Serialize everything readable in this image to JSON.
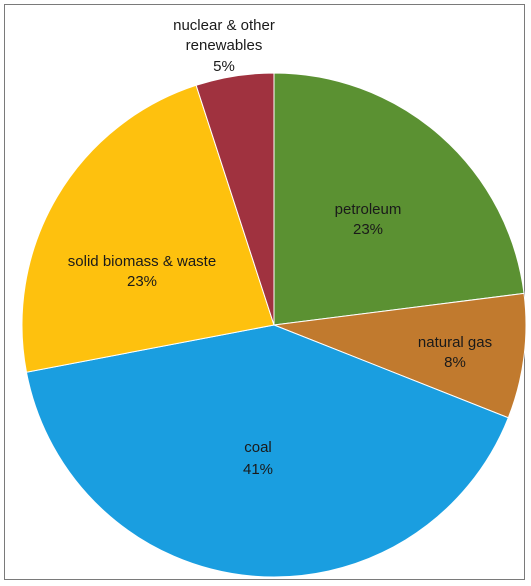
{
  "chart_data": {
    "type": "pie",
    "title": "",
    "start_angle_deg": 0,
    "direction": "clockwise",
    "slices": [
      {
        "label": "petroleum",
        "value": 23,
        "value_label": "23%",
        "color": "#5b9132"
      },
      {
        "label": "natural gas",
        "value": 8,
        "value_label": "8%",
        "color": "#c17a2e"
      },
      {
        "label": "coal",
        "value": 41,
        "value_label": "41%",
        "color": "#1a9ee0"
      },
      {
        "label": "solid biomass & waste",
        "value": 23,
        "value_label": "23%",
        "color": "#fec10e"
      },
      {
        "label": "nuclear & other renewables",
        "value": 5,
        "value_label": "5%",
        "color": "#a0323f"
      }
    ],
    "legend": "none"
  }
}
